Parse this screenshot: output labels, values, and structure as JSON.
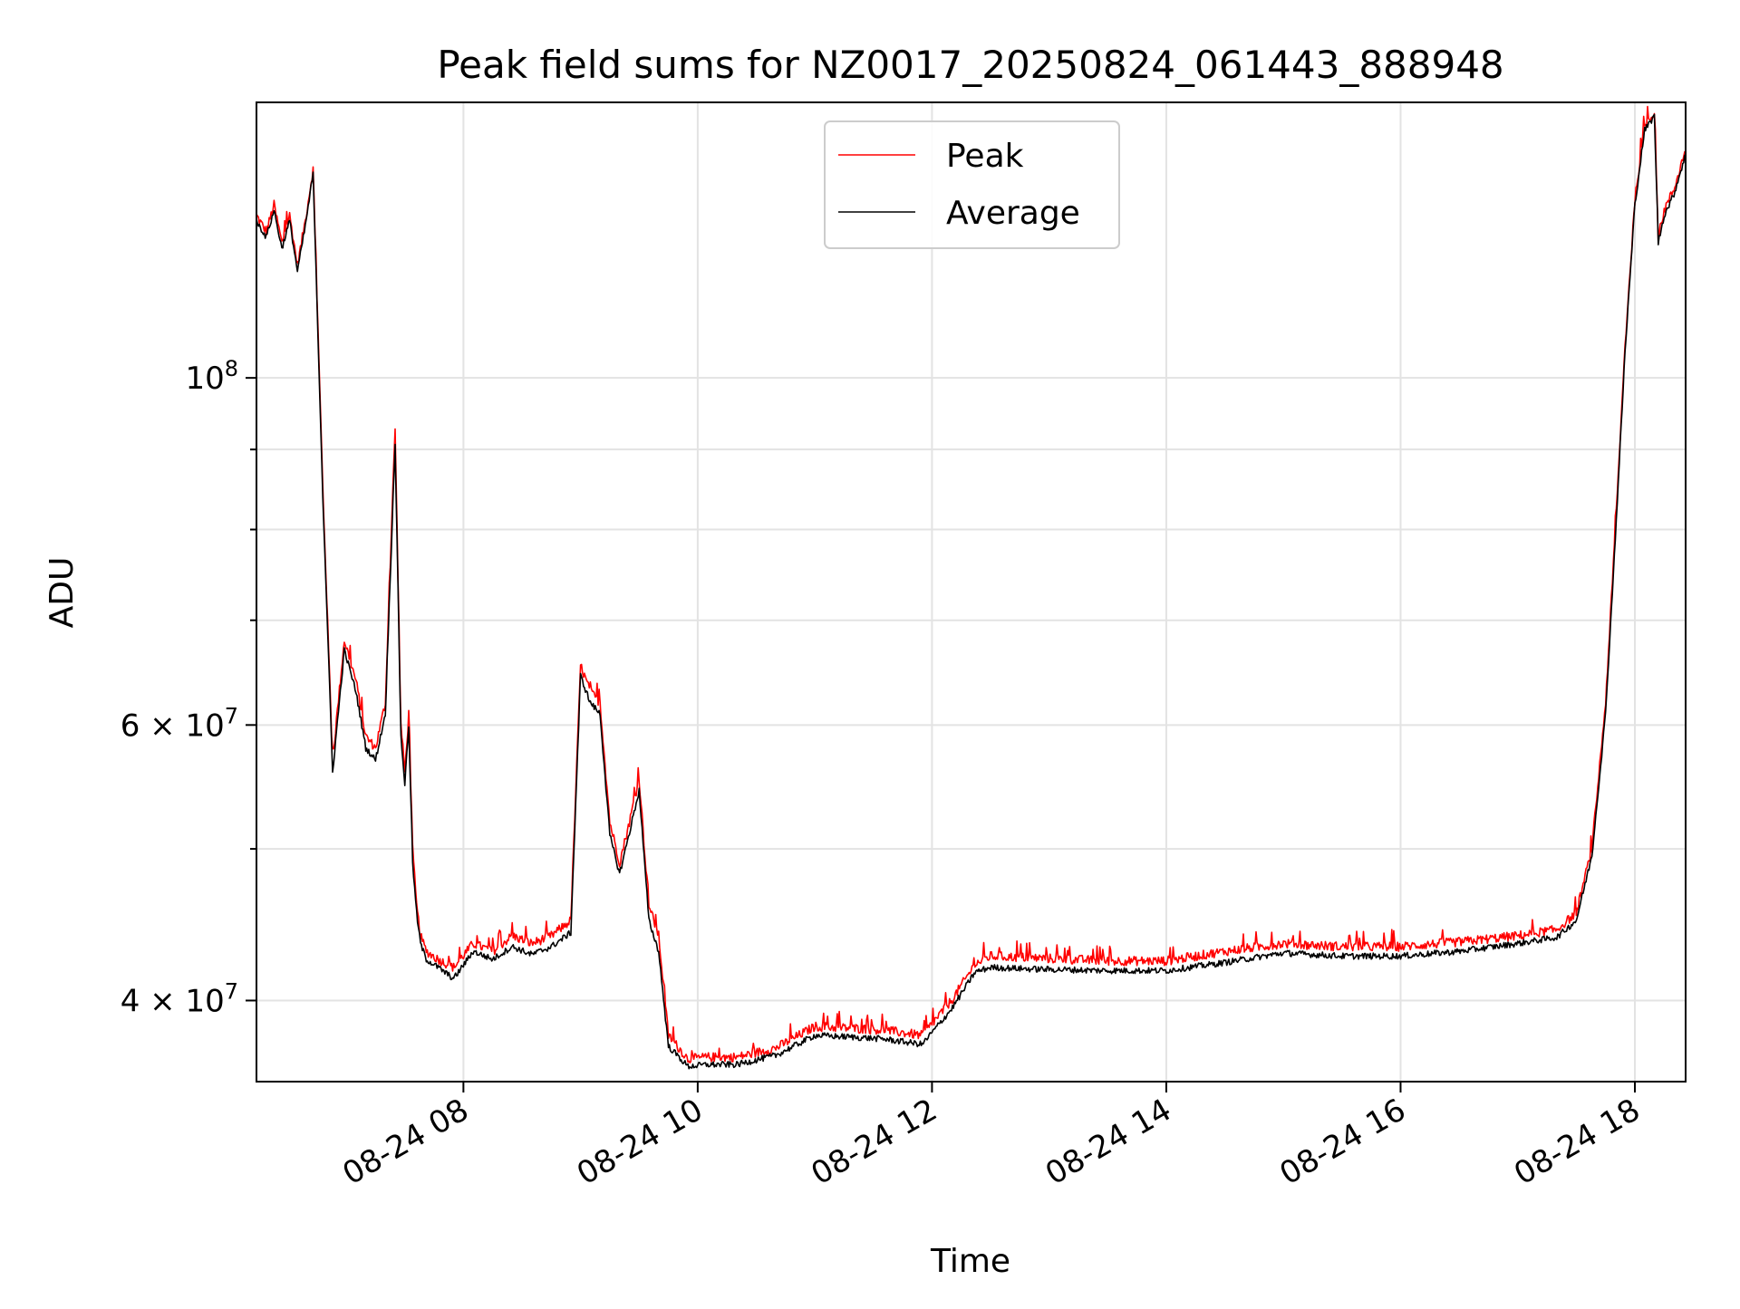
{
  "chart_data": {
    "type": "line",
    "title": "Peak field sums for NZ0017_20250824_061443_888948",
    "xlabel": "Time",
    "ylabel": "ADU",
    "x_type": "datetime",
    "xlim": [
      "2025-08-24 06:14",
      "2025-08-24 18:26"
    ],
    "ylim": [
      35500000,
      150000000
    ],
    "yscale": "log",
    "grid": true,
    "legend_position": "upper center",
    "x_ticks": [
      {
        "value": "2025-08-24 08:00",
        "label": "08-24 08"
      },
      {
        "value": "2025-08-24 10:00",
        "label": "08-24 10"
      },
      {
        "value": "2025-08-24 12:00",
        "label": "08-24 12"
      },
      {
        "value": "2025-08-24 14:00",
        "label": "08-24 14"
      },
      {
        "value": "2025-08-24 16:00",
        "label": "08-24 16"
      },
      {
        "value": "2025-08-24 18:00",
        "label": "08-24 18"
      }
    ],
    "y_major_ticks": [
      {
        "value": 40000000,
        "base": "4",
        "exp": "7",
        "label": "4 × 10^7"
      },
      {
        "value": 60000000,
        "base": "6",
        "exp": "7",
        "label": "6 × 10^7"
      },
      {
        "value": 100000000,
        "base": "10",
        "exp": "8",
        "label": "10^8"
      }
    ],
    "y_minor_ticks": [
      50000000,
      70000000,
      80000000,
      90000000
    ],
    "series": [
      {
        "name": "Peak",
        "color": "#ff0000",
        "x": [
          "2025-08-24 06:14",
          "2025-08-24 06:19",
          "2025-08-24 06:23",
          "2025-08-24 06:27",
          "2025-08-24 06:31",
          "2025-08-24 06:35",
          "2025-08-24 06:39",
          "2025-08-24 06:43",
          "2025-08-24 06:48",
          "2025-08-24 06:53",
          "2025-08-24 06:59",
          "2025-08-24 07:05",
          "2025-08-24 07:10",
          "2025-08-24 07:15",
          "2025-08-24 07:20",
          "2025-08-24 07:25",
          "2025-08-24 07:28",
          "2025-08-24 07:30",
          "2025-08-24 07:32",
          "2025-08-24 07:34",
          "2025-08-24 07:36",
          "2025-08-24 07:38",
          "2025-08-24 07:41",
          "2025-08-24 07:47",
          "2025-08-24 07:55",
          "2025-08-24 08:05",
          "2025-08-24 08:15",
          "2025-08-24 08:25",
          "2025-08-24 08:35",
          "2025-08-24 08:45",
          "2025-08-24 08:55",
          "2025-08-24 09:00",
          "2025-08-24 09:05",
          "2025-08-24 09:10",
          "2025-08-24 09:15",
          "2025-08-24 09:20",
          "2025-08-24 09:25",
          "2025-08-24 09:30",
          "2025-08-24 09:35",
          "2025-08-24 09:40",
          "2025-08-24 09:45",
          "2025-08-24 09:55",
          "2025-08-24 10:05",
          "2025-08-24 10:20",
          "2025-08-24 10:40",
          "2025-08-24 11:00",
          "2025-08-24 11:20",
          "2025-08-24 11:35",
          "2025-08-24 11:55",
          "2025-08-24 12:10",
          "2025-08-24 12:22",
          "2025-08-24 12:30",
          "2025-08-24 12:50",
          "2025-08-24 13:30",
          "2025-08-24 14:00",
          "2025-08-24 14:30",
          "2025-08-24 15:00",
          "2025-08-24 15:30",
          "2025-08-24 16:00",
          "2025-08-24 16:30",
          "2025-08-24 17:00",
          "2025-08-24 17:20",
          "2025-08-24 17:30",
          "2025-08-24 17:38",
          "2025-08-24 17:45",
          "2025-08-24 17:50",
          "2025-08-24 17:55",
          "2025-08-24 18:00",
          "2025-08-24 18:05",
          "2025-08-24 18:10",
          "2025-08-24 18:12",
          "2025-08-24 18:15",
          "2025-08-24 18:20",
          "2025-08-24 18:26"
        ],
        "values": [
          127000000,
          124000000,
          129000000,
          122000000,
          127000000,
          118000000,
          126000000,
          136000000,
          85000000,
          57000000,
          68000000,
          64000000,
          59000000,
          58000000,
          62000000,
          93000000,
          60000000,
          56000000,
          61000000,
          50000000,
          46000000,
          44000000,
          43000000,
          42500000,
          42000000,
          43500000,
          43000000,
          44000000,
          43500000,
          44000000,
          45000000,
          65500000,
          63000000,
          62000000,
          52000000,
          49000000,
          52000000,
          55500000,
          46000000,
          44000000,
          38000000,
          36700000,
          36800000,
          36800000,
          37300000,
          38500000,
          38400000,
          38300000,
          38000000,
          40000000,
          42200000,
          42700000,
          42600000,
          42400000,
          42400000,
          43000000,
          43500000,
          43300000,
          43300000,
          43600000,
          44000000,
          44400000,
          45500000,
          50000000,
          62000000,
          80000000,
          105000000,
          130000000,
          145000000,
          148000000,
          123000000,
          128000000,
          132000000,
          140000000
        ]
      },
      {
        "name": "Average",
        "color": "#000000",
        "x": [
          "2025-08-24 06:14",
          "2025-08-24 06:19",
          "2025-08-24 06:23",
          "2025-08-24 06:27",
          "2025-08-24 06:31",
          "2025-08-24 06:35",
          "2025-08-24 06:39",
          "2025-08-24 06:43",
          "2025-08-24 06:48",
          "2025-08-24 06:53",
          "2025-08-24 06:59",
          "2025-08-24 07:05",
          "2025-08-24 07:10",
          "2025-08-24 07:15",
          "2025-08-24 07:20",
          "2025-08-24 07:25",
          "2025-08-24 07:28",
          "2025-08-24 07:30",
          "2025-08-24 07:32",
          "2025-08-24 07:34",
          "2025-08-24 07:36",
          "2025-08-24 07:38",
          "2025-08-24 07:41",
          "2025-08-24 07:47",
          "2025-08-24 07:55",
          "2025-08-24 08:05",
          "2025-08-24 08:15",
          "2025-08-24 08:25",
          "2025-08-24 08:35",
          "2025-08-24 08:45",
          "2025-08-24 08:55",
          "2025-08-24 09:00",
          "2025-08-24 09:05",
          "2025-08-24 09:10",
          "2025-08-24 09:15",
          "2025-08-24 09:20",
          "2025-08-24 09:25",
          "2025-08-24 09:30",
          "2025-08-24 09:35",
          "2025-08-24 09:40",
          "2025-08-24 09:45",
          "2025-08-24 09:55",
          "2025-08-24 10:05",
          "2025-08-24 10:20",
          "2025-08-24 10:40",
          "2025-08-24 11:00",
          "2025-08-24 11:20",
          "2025-08-24 11:35",
          "2025-08-24 11:55",
          "2025-08-24 12:10",
          "2025-08-24 12:22",
          "2025-08-24 12:30",
          "2025-08-24 12:50",
          "2025-08-24 13:30",
          "2025-08-24 14:00",
          "2025-08-24 14:30",
          "2025-08-24 15:00",
          "2025-08-24 15:30",
          "2025-08-24 16:00",
          "2025-08-24 16:30",
          "2025-08-24 17:00",
          "2025-08-24 17:20",
          "2025-08-24 17:30",
          "2025-08-24 17:38",
          "2025-08-24 17:45",
          "2025-08-24 17:50",
          "2025-08-24 17:55",
          "2025-08-24 18:00",
          "2025-08-24 18:05",
          "2025-08-24 18:10",
          "2025-08-24 18:12",
          "2025-08-24 18:15",
          "2025-08-24 18:20",
          "2025-08-24 18:26"
        ],
        "values": [
          126000000,
          123000000,
          128000000,
          121000000,
          126000000,
          117000000,
          125000000,
          135000000,
          84000000,
          56000000,
          67000000,
          63000000,
          58000000,
          57000000,
          61000000,
          91000000,
          59000000,
          55000000,
          60000000,
          49000000,
          45500000,
          43500000,
          42500000,
          42000000,
          41300000,
          43000000,
          42500000,
          43300000,
          42800000,
          43300000,
          44200000,
          64500000,
          62000000,
          61000000,
          51000000,
          48200000,
          51200000,
          54500000,
          45000000,
          43000000,
          37400000,
          36300000,
          36400000,
          36400000,
          36900000,
          38000000,
          37900000,
          37800000,
          37500000,
          39500000,
          41700000,
          42000000,
          41900000,
          41800000,
          41800000,
          42300000,
          42900000,
          42700000,
          42700000,
          43000000,
          43500000,
          43900000,
          45000000,
          49500000,
          61000000,
          79000000,
          104000000,
          129000000,
          144000000,
          147000000,
          122000000,
          127000000,
          131000000,
          139000000
        ]
      }
    ]
  }
}
